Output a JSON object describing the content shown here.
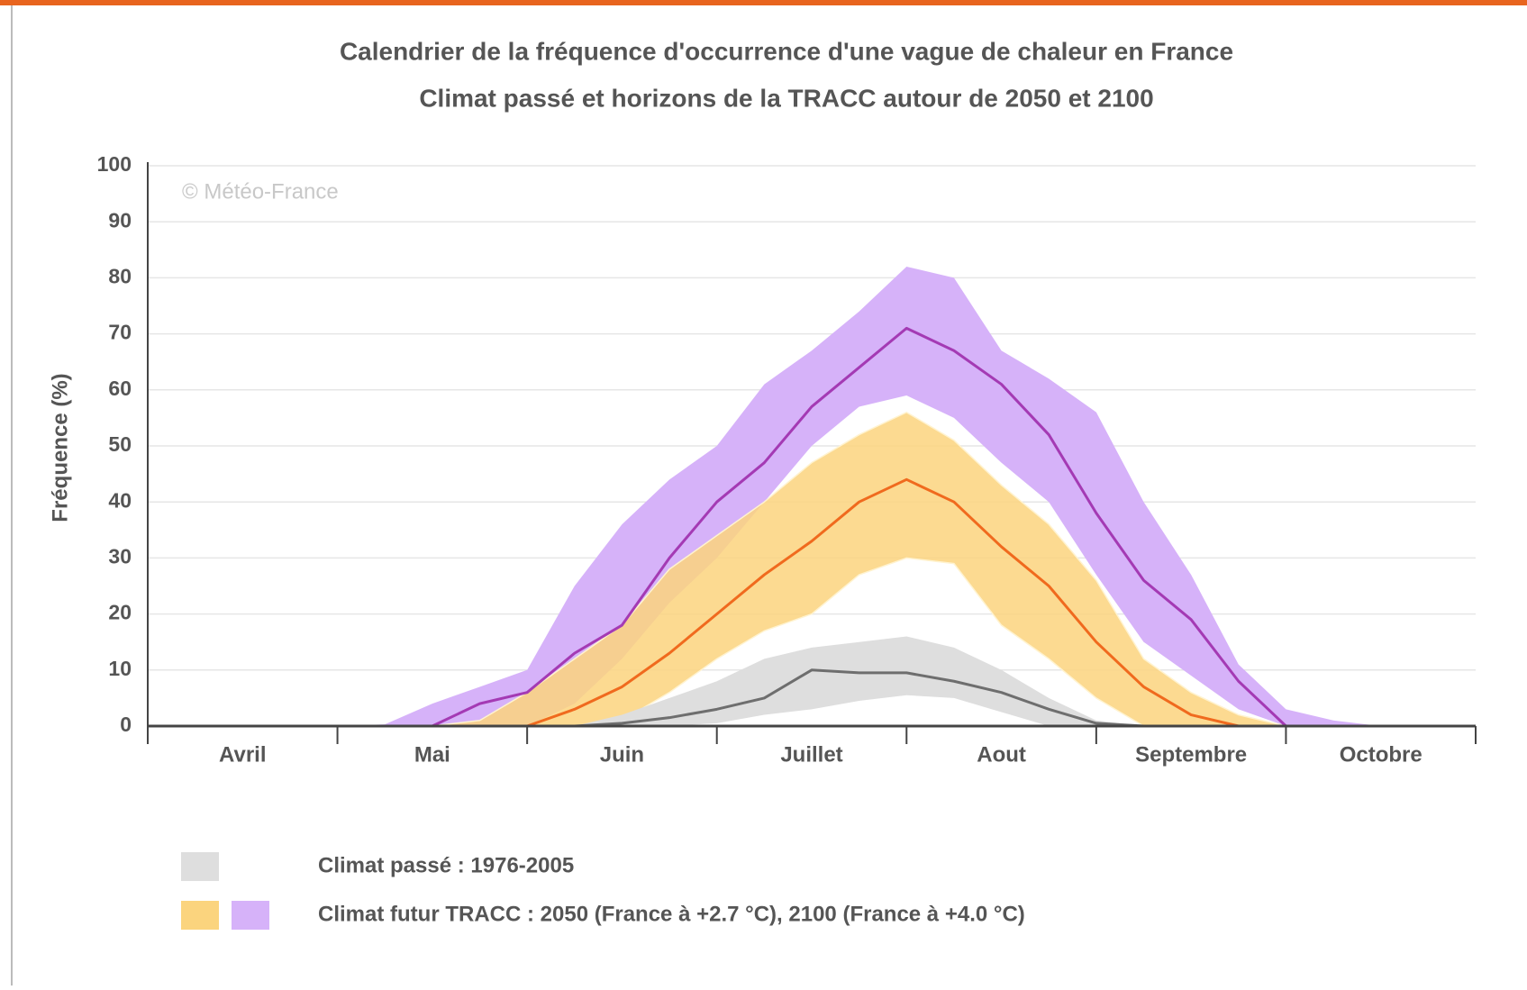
{
  "chart_data": {
    "type": "area-range",
    "title": "Calendrier de la fréquence d'occurrence d'une vague de chaleur en France",
    "subtitle": "Climat passé et horizons de la TRACC autour de 2050 et 2100",
    "annotation": "© Météo-France",
    "ylabel": "Fréquence (%)",
    "categories": [
      "Avril",
      "Mai",
      "Juin",
      "Juillet",
      "Aout",
      "Septembre",
      "Octobre"
    ],
    "x": [
      0,
      0.25,
      0.5,
      0.75,
      1,
      1.25,
      1.5,
      1.75,
      2,
      2.25,
      2.5,
      2.75,
      3,
      3.25,
      3.5,
      3.75,
      4,
      4.25,
      4.5,
      4.75,
      5,
      5.25,
      5.5,
      5.75,
      6,
      6.25,
      6.5,
      6.75,
      7
    ],
    "xlim": [
      0,
      7
    ],
    "xticks": [
      0,
      1,
      2,
      3,
      4,
      5,
      6,
      7
    ],
    "ylim": [
      0,
      100
    ],
    "yticks": [
      0,
      10,
      20,
      30,
      40,
      50,
      60,
      70,
      80,
      90,
      100
    ],
    "grid": true,
    "series": [
      {
        "color": "#a43ab4",
        "band_color": "#d6b2f9",
        "values": [
          0,
          0,
          0,
          0,
          0,
          0,
          0,
          4,
          6,
          13,
          18,
          30,
          40,
          47,
          57,
          64,
          71,
          67,
          61,
          52,
          38,
          26,
          19,
          8,
          0,
          0,
          0,
          0,
          0
        ],
        "low": [
          0,
          0,
          0,
          0,
          0,
          0,
          0,
          0,
          0,
          4,
          12,
          22,
          30,
          40,
          50,
          57,
          59,
          55,
          47,
          40,
          27,
          15,
          9,
          3,
          0,
          0,
          0,
          0,
          0
        ],
        "high": [
          0,
          0,
          0,
          0,
          0,
          0.3,
          4,
          7,
          10,
          25,
          36,
          44,
          50,
          61,
          67,
          74,
          82,
          80,
          67,
          62,
          56,
          40,
          27,
          11,
          3,
          1,
          0,
          0,
          0
        ]
      },
      {
        "color": "#f06a1e",
        "band_color": "#fbd47e",
        "values": [
          0,
          0,
          0,
          0,
          0,
          0,
          0,
          0,
          0,
          3,
          7,
          13,
          20,
          27,
          33,
          40,
          44,
          40,
          32,
          25,
          15,
          7,
          2,
          0,
          0,
          0,
          0,
          0,
          0
        ],
        "low": [
          0,
          0,
          0,
          0,
          0,
          0,
          0,
          0,
          0,
          0,
          1,
          6,
          12,
          17,
          20,
          27,
          30,
          29,
          18,
          12,
          5,
          0,
          0,
          0,
          0,
          0,
          0,
          0,
          0
        ],
        "high": [
          0,
          0,
          0,
          0,
          0,
          0,
          0,
          1,
          6,
          12,
          18,
          28,
          34,
          40,
          47,
          52,
          56,
          51,
          43,
          36,
          26,
          12,
          6,
          2,
          0,
          0,
          0,
          0,
          0
        ]
      },
      {
        "color": "#6e6e6e",
        "band_color": "#dedede",
        "values": [
          0,
          0,
          0,
          0,
          0,
          0,
          0,
          0,
          0,
          0,
          0.5,
          1.5,
          3,
          5,
          10,
          9.5,
          9.5,
          8,
          6,
          3,
          0.5,
          0,
          0,
          0,
          0,
          0,
          0,
          0,
          0
        ],
        "low": [
          0,
          0,
          0,
          0,
          0,
          0,
          0,
          0,
          0,
          0,
          0,
          0,
          0.5,
          2,
          3,
          4.5,
          5.5,
          5,
          2.5,
          0,
          0,
          0,
          0,
          0,
          0,
          0,
          0,
          0,
          0
        ],
        "high": [
          0,
          0,
          0,
          0,
          0,
          0,
          0,
          0,
          0,
          0,
          2,
          5,
          8,
          12,
          14,
          15,
          16,
          14,
          10,
          5,
          1,
          0,
          0,
          0,
          0,
          0,
          0,
          0,
          0
        ]
      }
    ],
    "legend": [
      {
        "label": "Climat passé : 1976-2005",
        "colors": [
          "#dedede"
        ]
      },
      {
        "label": "Climat futur TRACC : 2050 (France à +2.7 °C), 2100 (France à +4.0 °C)",
        "colors": [
          "#fbd47e",
          "#d6b2f9"
        ]
      }
    ]
  }
}
